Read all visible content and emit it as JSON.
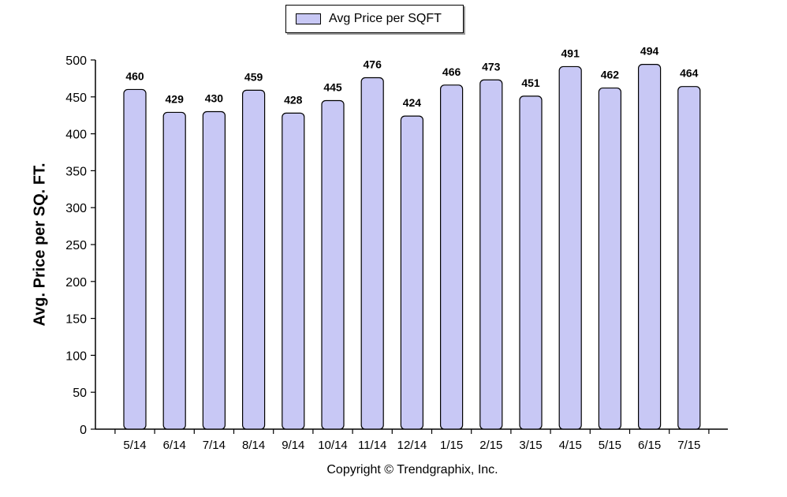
{
  "legend": {
    "label": "Avg Price per SQFT"
  },
  "footer": {
    "copyright": "Copyright © Trendgraphix, Inc."
  },
  "colors": {
    "bar_fill": "#c8c8f5",
    "bar_stroke": "#000000",
    "axis": "#000000"
  },
  "chart_data": {
    "type": "bar",
    "title": "",
    "xlabel": "",
    "ylabel": "Avg. Price per SQ. FT.",
    "ylim": [
      0,
      500
    ],
    "yticks": [
      0,
      50,
      100,
      150,
      200,
      250,
      300,
      350,
      400,
      450,
      500
    ],
    "grid": false,
    "legend_position": "top-center",
    "categories": [
      "5/14",
      "6/14",
      "7/14",
      "8/14",
      "9/14",
      "10/14",
      "11/14",
      "12/14",
      "1/15",
      "2/15",
      "3/15",
      "4/15",
      "5/15",
      "6/15",
      "7/15"
    ],
    "series": [
      {
        "name": "Avg Price per SQFT",
        "values": [
          460,
          429,
          430,
          459,
          428,
          445,
          476,
          424,
          466,
          473,
          451,
          491,
          462,
          494,
          464
        ]
      }
    ]
  }
}
